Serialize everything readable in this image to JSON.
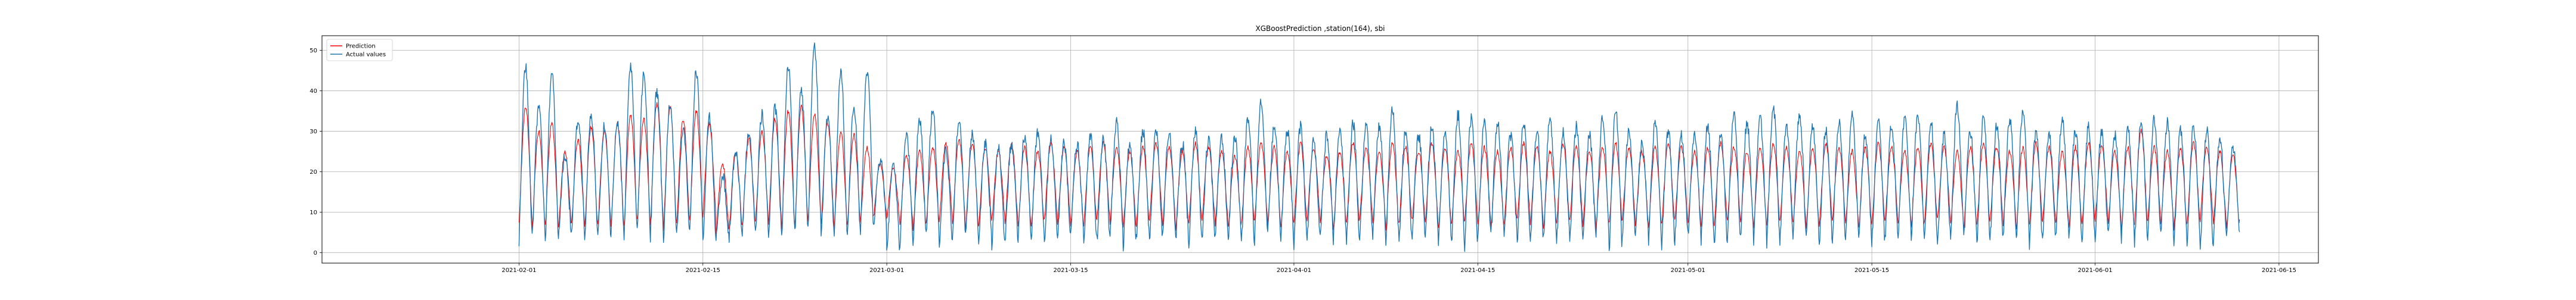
{
  "chart_data": {
    "type": "line",
    "title": "XGBoostPrediction ,station(164), sbi",
    "xlabel": "",
    "ylabel": "",
    "x_type": "date",
    "xlim": [
      "2021-01-17",
      "2021-06-18"
    ],
    "ylim": [
      -2.6,
      53.6
    ],
    "x_ticks": [
      "2021-02-01",
      "2021-02-15",
      "2021-03-01",
      "2021-03-15",
      "2021-04-01",
      "2021-04-15",
      "2021-05-01",
      "2021-05-15",
      "2021-06-01",
      "2021-06-15"
    ],
    "y_ticks": [
      0,
      10,
      20,
      30,
      40,
      50
    ],
    "grid": true,
    "legend": "upper-left",
    "data_range": [
      "2021-02-01",
      "2021-06-12"
    ],
    "series": [
      {
        "name": "Prediction",
        "color": "#ff0000",
        "daily_peaks": [
          36,
          30,
          32,
          25,
          28,
          31,
          30,
          32,
          34,
          33,
          37,
          36,
          33,
          35,
          32,
          22,
          25,
          28,
          30,
          33,
          35,
          36,
          34,
          32,
          30,
          29,
          26,
          22,
          21,
          24,
          25,
          26,
          27,
          28,
          27,
          26,
          25,
          27,
          26,
          25,
          27,
          26,
          25,
          26,
          27,
          26,
          25,
          26,
          27,
          26,
          25,
          27,
          26,
          25,
          24,
          26,
          27,
          26,
          25,
          27,
          26,
          24,
          25,
          27,
          26,
          25,
          27,
          26,
          25,
          27,
          26,
          25,
          27,
          26,
          25,
          26,
          27,
          26,
          25,
          27,
          26,
          25,
          26,
          27,
          26,
          25,
          26,
          27,
          26,
          25,
          26,
          27,
          26,
          25,
          26,
          27,
          26,
          25,
          26,
          27,
          26,
          25,
          26,
          27,
          26,
          25,
          26,
          27,
          26,
          25,
          26,
          27,
          26,
          25,
          26,
          27,
          26,
          25,
          26,
          27,
          26,
          25,
          26,
          30,
          26,
          25,
          26,
          27,
          26,
          25,
          24,
          23,
          24
        ],
        "daily_troughs": [
          8,
          6,
          7,
          6,
          7,
          6,
          7,
          6,
          7,
          8,
          7,
          6,
          7,
          8,
          9,
          5,
          6,
          7,
          8,
          7,
          6,
          7,
          8,
          7,
          6,
          7,
          8,
          9,
          8,
          7,
          6,
          7,
          8,
          7,
          6,
          7,
          8,
          7,
          6,
          7,
          8,
          7,
          6,
          7,
          8,
          7,
          6,
          7,
          8,
          7,
          6,
          7,
          8,
          7,
          6,
          7,
          8,
          7,
          6,
          7,
          8,
          7,
          6,
          7,
          8,
          7,
          6,
          7,
          8,
          7,
          6,
          7,
          8,
          7,
          6,
          7,
          8,
          7,
          6,
          7,
          8,
          7,
          6,
          7,
          8,
          7,
          6,
          7,
          8,
          7,
          6,
          7,
          8,
          7,
          6,
          7,
          8,
          7,
          6,
          7,
          8,
          7,
          6,
          7,
          8,
          7,
          6,
          7,
          8,
          7,
          6,
          7,
          8,
          7,
          6,
          7,
          8,
          7,
          6,
          7,
          8,
          7,
          6,
          7,
          8,
          7,
          6,
          7,
          8,
          7,
          6,
          8,
          9
        ]
      },
      {
        "name": "Actual values",
        "color": "#1f77b4",
        "daily_peaks": [
          46,
          36,
          45,
          24,
          33,
          34,
          31,
          32,
          46,
          44,
          40,
          37,
          31,
          45,
          34,
          19,
          25,
          30,
          34,
          36,
          46,
          40,
          51,
          33,
          45,
          36,
          45,
          23,
          22,
          30,
          33,
          36,
          25,
          33,
          29,
          27,
          26,
          27,
          29,
          30,
          28,
          27,
          27,
          29,
          28,
          32,
          27,
          30,
          30,
          30,
          27,
          30,
          28,
          28,
          29,
          33,
          37,
          31,
          30,
          31,
          28,
          29,
          30,
          32,
          31,
          31,
          35,
          30,
          29,
          31,
          30,
          34,
          33,
          32,
          32,
          29,
          32,
          30,
          33,
          30,
          31,
          29,
          33,
          35,
          30,
          27,
          32,
          30,
          29,
          29,
          31,
          30,
          34,
          32,
          33,
          36,
          31,
          34,
          31,
          30,
          32,
          34,
          29,
          32,
          31,
          33,
          34,
          32,
          29,
          36,
          30,
          33,
          31,
          33,
          35,
          30,
          29,
          33,
          30,
          31,
          30,
          29,
          31,
          33,
          33,
          32,
          30,
          31,
          30,
          28,
          26,
          27,
          27
        ],
        "daily_troughs": [
          3,
          4,
          3,
          4,
          5,
          3,
          4,
          5,
          4,
          5,
          4,
          3,
          4,
          5,
          2,
          3,
          4,
          5,
          4,
          3,
          4,
          5,
          6,
          4,
          3,
          4,
          5,
          6,
          0,
          2,
          3,
          4,
          2,
          3,
          4,
          3,
          2,
          3,
          4,
          3,
          2,
          3,
          4,
          2,
          3,
          4,
          1,
          3,
          2,
          4,
          3,
          2,
          3,
          4,
          3,
          2,
          3,
          4,
          3,
          2,
          3,
          4,
          3,
          2,
          3,
          4,
          3,
          2,
          3,
          4,
          3,
          2,
          1,
          3,
          4,
          3,
          2,
          3,
          4,
          3,
          2,
          3,
          4,
          0,
          3,
          4,
          3,
          2,
          3,
          4,
          3,
          2,
          3,
          4,
          3,
          2,
          3,
          4,
          3,
          2,
          3,
          4,
          3,
          2,
          3,
          4,
          3,
          2,
          3,
          4,
          3,
          2,
          3,
          4,
          3,
          2,
          3,
          4,
          3,
          2,
          3,
          4,
          3,
          2,
          3,
          4,
          3,
          2,
          0,
          3,
          4,
          5,
          6
        ]
      }
    ]
  }
}
